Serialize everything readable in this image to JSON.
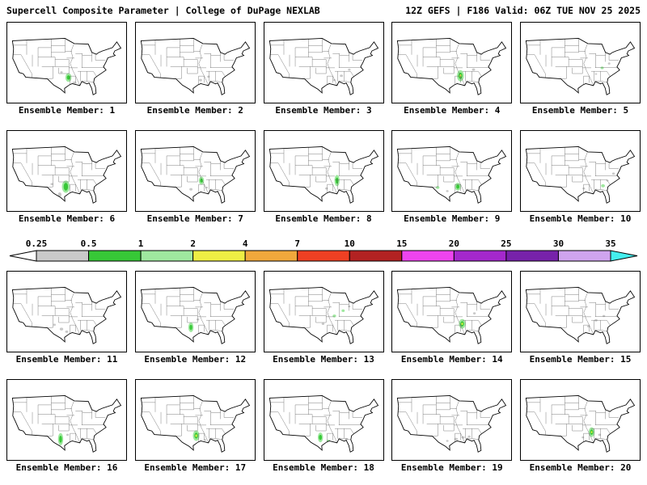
{
  "header": {
    "left": "Supercell Composite Parameter | College of DuPage NEXLAB",
    "right": "12Z GEFS | F186 Valid: 06Z TUE NOV 25 2025"
  },
  "colorbar": {
    "ticks": [
      "0.25",
      "0.5",
      "1",
      "2",
      "4",
      "7",
      "10",
      "15",
      "20",
      "25",
      "30",
      "35"
    ],
    "colors": [
      "#ffffff",
      "#c9c9c9",
      "#37c837",
      "#9fe89f",
      "#eeee44",
      "#f0a83c",
      "#ee4023",
      "#b22222",
      "#ee44ee",
      "#a428cc",
      "#7722aa",
      "#cfa4ee",
      "#44eeee"
    ]
  },
  "palette": {
    "g1": "#9fe89f",
    "g2": "#37c837",
    "y": "#eeee44",
    "gr": "#c9c9c9"
  },
  "map_style": {
    "outline": "#000000",
    "state_lines": "#555555",
    "land": "#ffffff"
  },
  "members": [
    {
      "label": "Ensemble Member: 1",
      "blobs": [
        [
          70,
          58,
          3.5,
          5,
          "g1"
        ],
        [
          70,
          58,
          1.8,
          2.6,
          "g2"
        ],
        [
          77,
          64,
          2,
          1.5,
          "gr"
        ],
        [
          62,
          52,
          1.5,
          1.2,
          "gr"
        ]
      ]
    },
    {
      "label": "Ensemble Member: 2",
      "blobs": [
        [
          74,
          61,
          1.8,
          1.4,
          "gr"
        ],
        [
          83,
          57,
          1.5,
          1.2,
          "gr"
        ]
      ]
    },
    {
      "label": "Ensemble Member: 3",
      "blobs": [
        [
          88,
          56,
          1.8,
          1.4,
          "gr"
        ],
        [
          97,
          49,
          1.5,
          1.2,
          "gr"
        ],
        [
          80,
          61,
          1.3,
          1,
          "gr"
        ]
      ]
    },
    {
      "label": "Ensemble Member: 4",
      "blobs": [
        [
          78,
          56,
          4,
          6.5,
          "g1"
        ],
        [
          78,
          56,
          2.2,
          3.6,
          "g2"
        ],
        [
          78,
          56,
          1,
          1.6,
          "y"
        ],
        [
          93,
          49,
          1.8,
          1.4,
          "gr"
        ]
      ]
    },
    {
      "label": "Ensemble Member: 5",
      "blobs": [
        [
          93,
          47,
          1.8,
          1.5,
          "g1"
        ],
        [
          101,
          42,
          1.4,
          1.2,
          "gr"
        ],
        [
          86,
          54,
          1.3,
          1,
          "gr"
        ]
      ]
    },
    {
      "label": "Ensemble Member: 6",
      "blobs": [
        [
          67,
          59,
          4.5,
          7,
          "g1"
        ],
        [
          67,
          59,
          2.5,
          4.5,
          "g2"
        ],
        [
          60,
          68,
          2,
          2.5,
          "gr"
        ],
        [
          51,
          56,
          1.5,
          1.2,
          "gr"
        ]
      ]
    },
    {
      "label": "Ensemble Member: 7",
      "blobs": [
        [
          75,
          52,
          3,
          4.5,
          "g1"
        ],
        [
          75,
          52,
          1.5,
          2.2,
          "g2"
        ],
        [
          63,
          62,
          1.8,
          1.4,
          "gr"
        ],
        [
          81,
          60,
          1.4,
          1.1,
          "gr"
        ]
      ]
    },
    {
      "label": "Ensemble Member: 8",
      "blobs": [
        [
          83,
          52,
          3,
          6.5,
          "g1"
        ],
        [
          83,
          52,
          1.6,
          3.5,
          "g2"
        ],
        [
          71,
          61,
          1.6,
          1.3,
          "gr"
        ]
      ]
    },
    {
      "label": "Ensemble Member: 9",
      "blobs": [
        [
          75,
          59,
          3.5,
          4.5,
          "g1"
        ],
        [
          75,
          59,
          1.8,
          2.4,
          "g2"
        ],
        [
          52,
          60,
          2,
          1.6,
          "g1"
        ],
        [
          63,
          64,
          1.5,
          1.2,
          "gr"
        ]
      ]
    },
    {
      "label": "Ensemble Member: 10",
      "blobs": [
        [
          94,
          58,
          2.2,
          1.8,
          "g1"
        ],
        [
          106,
          44,
          1.6,
          1.3,
          "gr"
        ],
        [
          72,
          61,
          1.5,
          1.2,
          "gr"
        ],
        [
          99,
          52,
          1.4,
          1.1,
          "gr"
        ]
      ]
    },
    {
      "label": "Ensemble Member: 11",
      "blobs": [
        [
          62,
          61,
          2,
          1.6,
          "gr"
        ],
        [
          68,
          64,
          1.8,
          1.4,
          "gr"
        ],
        [
          54,
          56,
          1.5,
          1.2,
          "gr"
        ]
      ]
    },
    {
      "label": "Ensemble Member: 12",
      "blobs": [
        [
          63,
          59,
          3,
          5.5,
          "g1"
        ],
        [
          63,
          59,
          1.6,
          3,
          "g2"
        ],
        [
          71,
          50,
          1.5,
          1.2,
          "gr"
        ]
      ]
    },
    {
      "label": "Ensemble Member: 13",
      "blobs": [
        [
          80,
          46,
          2,
          1.6,
          "g1"
        ],
        [
          90,
          40,
          1.8,
          1.5,
          "g1"
        ],
        [
          67,
          55,
          1.6,
          1.3,
          "gr"
        ],
        [
          97,
          35,
          1.4,
          1.1,
          "gr"
        ]
      ]
    },
    {
      "label": "Ensemble Member: 14",
      "blobs": [
        [
          80,
          55,
          3.8,
          5.5,
          "g1"
        ],
        [
          80,
          55,
          2,
          3,
          "g2"
        ],
        [
          80,
          55,
          0.9,
          1.3,
          "y"
        ],
        [
          94,
          43,
          1.6,
          1.3,
          "gr"
        ]
      ]
    },
    {
      "label": "Ensemble Member: 15",
      "blobs": [
        [
          86,
          51,
          1.7,
          1.3,
          "gr"
        ],
        [
          95,
          46,
          1.5,
          1.2,
          "gr"
        ],
        [
          77,
          58,
          1.3,
          1,
          "gr"
        ]
      ]
    },
    {
      "label": "Ensemble Member: 16",
      "blobs": [
        [
          61,
          63,
          3,
          7,
          "g1"
        ],
        [
          61,
          63,
          1.6,
          4,
          "g2"
        ],
        [
          69,
          58,
          1.5,
          1.2,
          "gr"
        ]
      ]
    },
    {
      "label": "Ensemble Member: 17",
      "blobs": [
        [
          69,
          59,
          3.8,
          6,
          "g1"
        ],
        [
          69,
          59,
          2,
          3.4,
          "g2"
        ],
        [
          69,
          59,
          0.9,
          1.5,
          "y"
        ],
        [
          79,
          64,
          1.5,
          1.2,
          "gr"
        ]
      ]
    },
    {
      "label": "Ensemble Member: 18",
      "blobs": [
        [
          64,
          61,
          3,
          5.5,
          "g1"
        ],
        [
          64,
          61,
          1.7,
          3,
          "g2"
        ],
        [
          73,
          65,
          1.8,
          1.4,
          "g1"
        ],
        [
          94,
          63,
          1.6,
          1.3,
          "gr"
        ]
      ]
    },
    {
      "label": "Ensemble Member: 19",
      "blobs": [
        [
          73,
          63,
          2,
          1.5,
          "gr"
        ],
        [
          81,
          61,
          1.8,
          1.4,
          "gr"
        ],
        [
          88,
          60,
          1.6,
          1.2,
          "gr"
        ],
        [
          63,
          65,
          1.4,
          1.1,
          "gr"
        ]
      ]
    },
    {
      "label": "Ensemble Member: 20",
      "blobs": [
        [
          81,
          55,
          3.4,
          5.5,
          "g1"
        ],
        [
          81,
          55,
          1.8,
          3,
          "g2"
        ],
        [
          81,
          55,
          0.8,
          1.3,
          "y"
        ],
        [
          90,
          58,
          1.6,
          1.3,
          "gr"
        ],
        [
          71,
          61,
          1.4,
          1.1,
          "gr"
        ]
      ]
    }
  ]
}
